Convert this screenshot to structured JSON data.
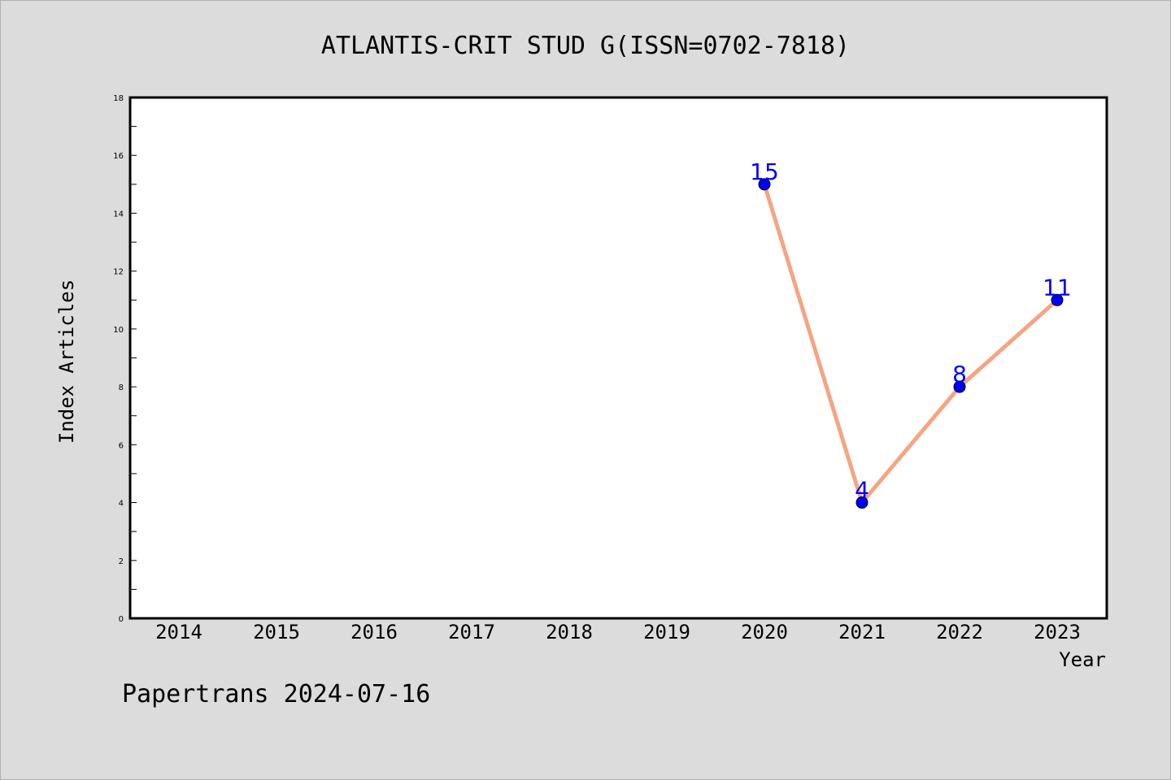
{
  "chart_data": {
    "type": "line",
    "title": "ATLANTIS-CRIT STUD G(ISSN=0702-7818)",
    "xlabel": "Year",
    "ylabel": "Index Articles",
    "categories": [
      "2014",
      "2015",
      "2016",
      "2017",
      "2018",
      "2019",
      "2020",
      "2021",
      "2022",
      "2023"
    ],
    "series": [
      {
        "x": [
          "2020",
          "2021",
          "2022",
          "2023"
        ],
        "values": [
          15,
          4,
          8,
          11
        ],
        "data_labels": [
          "15",
          "4",
          "8",
          "11"
        ]
      }
    ],
    "ylim": [
      0,
      18
    ],
    "yticks": [
      0,
      2,
      4,
      6,
      8,
      10,
      12,
      14,
      16,
      18
    ],
    "yticks_labels": [
      "0",
      "2",
      "4",
      "6",
      "8",
      "10",
      "12",
      "14",
      "16",
      "18"
    ],
    "grid": false,
    "colors": {
      "line": "#f4a582",
      "marker": "#0000ff",
      "data_label": "#0000ff",
      "background": "#dcdcdc",
      "plot_background": "#ffffff"
    }
  },
  "footer": "Papertrans 2024-07-16"
}
